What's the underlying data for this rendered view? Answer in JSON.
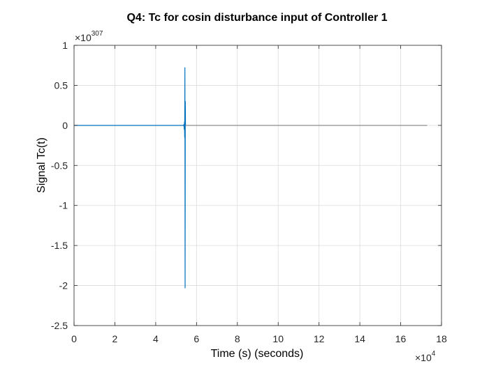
{
  "chart_data": {
    "type": "line",
    "title": "Q4: Tc for cosin disturbance input of Controller 1",
    "xlabel": "Time (s) (seconds)",
    "ylabel": "Signal Tc(t)",
    "xlim": [
      0,
      18
    ],
    "ylim": [
      -2.5,
      1
    ],
    "x_multiplier_base": "×10",
    "x_multiplier_exp": "4",
    "y_multiplier_base": "×10",
    "y_multiplier_exp": "307",
    "xticks": [
      "0",
      "2",
      "4",
      "6",
      "8",
      "10",
      "12",
      "14",
      "16",
      "18"
    ],
    "yticks": [
      "1",
      "0.5",
      "0",
      "-0.5",
      "-1",
      "-1.5",
      "-2",
      "-2.5"
    ],
    "grid": true,
    "series": [
      {
        "color": "#0072bd",
        "x": [
          0,
          5.35,
          5.38,
          5.4,
          5.41,
          5.42,
          5.43,
          5.44,
          5.45,
          5.46
        ],
        "y": [
          0,
          0,
          0.01,
          -0.05,
          0.04,
          -0.15,
          0.72,
          -2.03,
          0.3,
          0
        ]
      },
      {
        "color": "#8c8c8c",
        "x": [
          5.46,
          17.3
        ],
        "y": [
          0,
          0
        ]
      }
    ]
  }
}
